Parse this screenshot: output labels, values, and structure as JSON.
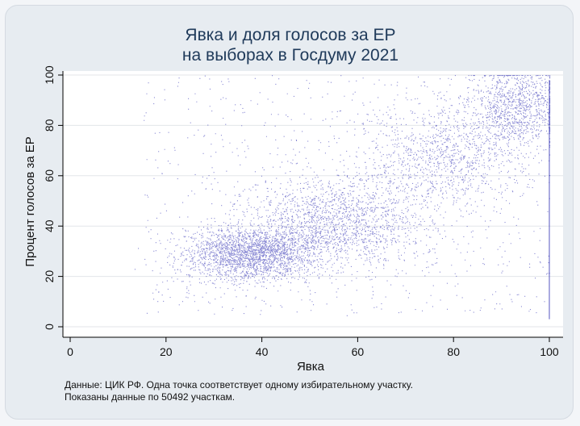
{
  "chart_data": {
    "type": "scatter",
    "title_lines": [
      "Явка и доля голосов за ЕР",
      "на выборах в Госдуму 2021"
    ],
    "xlabel": "Явка",
    "ylabel": "Процент голосов за ЕР",
    "xlim": [
      0,
      100
    ],
    "ylim": [
      0,
      100
    ],
    "x_ticks": [
      0,
      20,
      40,
      60,
      80,
      100
    ],
    "y_ticks": [
      0,
      20,
      40,
      60,
      80,
      100
    ],
    "grid": "horizontal",
    "point_color": "#2a2ab0",
    "point_count": 50492,
    "density_clusters": [
      {
        "x": 38,
        "y": 29,
        "sx": 7,
        "sy": 5,
        "weight": 0.36
      },
      {
        "x": 55,
        "y": 42,
        "sx": 10,
        "sy": 9,
        "weight": 0.28
      },
      {
        "x": 78,
        "y": 68,
        "sx": 9,
        "sy": 11,
        "weight": 0.18
      },
      {
        "x": 93,
        "y": 87,
        "sx": 5,
        "sy": 8,
        "weight": 0.18
      }
    ]
  },
  "footnote": {
    "line1": "Данные: ЦИК РФ. Одна точка соответствует одному избирательному участку.",
    "line2": "Показаны данные по 50492 участкам."
  }
}
